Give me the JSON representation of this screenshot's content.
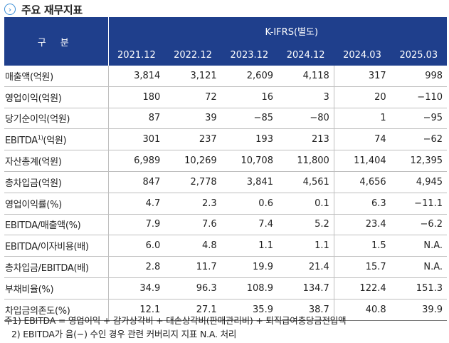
{
  "title": "주요 재무지표",
  "table": {
    "header_label": "구 분",
    "basis": "K-IFRS(별도)",
    "columns": [
      "2021.12",
      "2022.12",
      "2023.12",
      "2024.12",
      "2024.03",
      "2025.03"
    ],
    "rows": [
      {
        "label": "매출액(억원)",
        "values": [
          "3,814",
          "3,121",
          "2,609",
          "4,118",
          "317",
          "998"
        ]
      },
      {
        "label": "영업이익(억원)",
        "values": [
          "180",
          "72",
          "16",
          "3",
          "20",
          "−110"
        ]
      },
      {
        "label": "당기순이익(억원)",
        "values": [
          "87",
          "39",
          "−85",
          "−80",
          "1",
          "−95"
        ]
      },
      {
        "label": "EBITDA",
        "sup": "1)",
        "label_suffix": "(억원)",
        "values": [
          "301",
          "237",
          "193",
          "213",
          "74",
          "−62"
        ]
      },
      {
        "label": "자산총계(억원)",
        "values": [
          "6,989",
          "10,269",
          "10,708",
          "11,800",
          "11,404",
          "12,395"
        ]
      },
      {
        "label": "총차입금(억원)",
        "values": [
          "847",
          "2,778",
          "3,841",
          "4,561",
          "4,656",
          "4,945"
        ]
      },
      {
        "label": "영업이익률(%)",
        "values": [
          "4.7",
          "2.3",
          "0.6",
          "0.1",
          "6.3",
          "−11.1"
        ]
      },
      {
        "label": "EBITDA/매출액(%)",
        "values": [
          "7.9",
          "7.6",
          "7.4",
          "5.2",
          "23.4",
          "−6.2"
        ]
      },
      {
        "label": "EBITDA/이자비용(배)",
        "values": [
          "6.0",
          "4.8",
          "1.1",
          "1.1",
          "1.5",
          "N.A."
        ]
      },
      {
        "label": "총차입금/EBITDA(배)",
        "values": [
          "2.8",
          "11.7",
          "19.9",
          "21.4",
          "15.7",
          "N.A."
        ]
      },
      {
        "label": "부채비율(%)",
        "values": [
          "34.9",
          "96.3",
          "108.9",
          "134.7",
          "122.4",
          "151.3"
        ]
      },
      {
        "label": "차입금의존도(%)",
        "values": [
          "12.1",
          "27.1",
          "35.9",
          "38.7",
          "40.8",
          "39.9"
        ]
      }
    ]
  },
  "notes": [
    "주1) EBITDA = 영업이익 + 감가상각비 + 대손상각비(판매관리비) + 퇴직급여충당금전입액",
    "2) EBITDA가 음(−) 수인 경우 관련 커버리지 지표 N.A. 처리"
  ],
  "colors": {
    "header_bg": "#1f3f8c",
    "header_text": "#ffffff",
    "icon": "#3a8ed6"
  }
}
